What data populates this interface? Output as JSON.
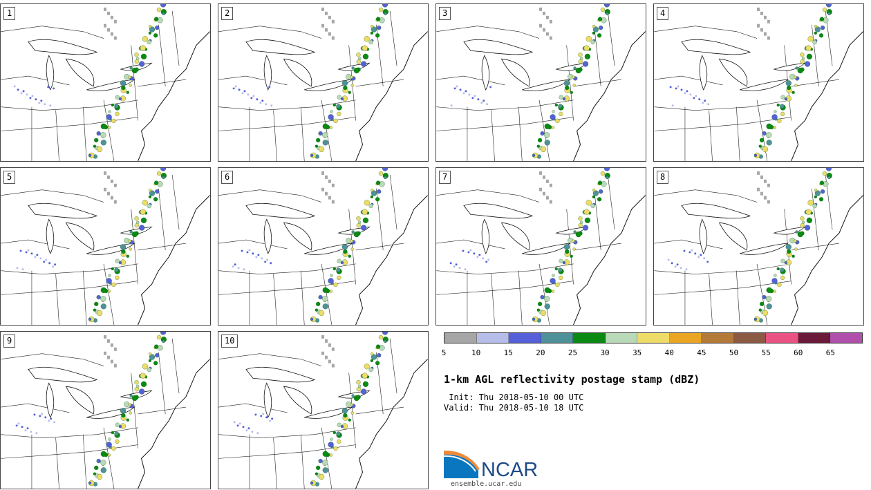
{
  "panels": [
    {
      "label": "1"
    },
    {
      "label": "2"
    },
    {
      "label": "3"
    },
    {
      "label": "4"
    },
    {
      "label": "5"
    },
    {
      "label": "6"
    },
    {
      "label": "7"
    },
    {
      "label": "8"
    },
    {
      "label": "9"
    },
    {
      "label": "10"
    }
  ],
  "colorbar": {
    "colors": [
      "#a6a6a6",
      "#b5bde8",
      "#5560d9",
      "#4f9199",
      "#0a8a12",
      "#bad9b8",
      "#eedc68",
      "#eaa622",
      "#b47a37",
      "#8b5a42",
      "#ea5284",
      "#6b1a3a",
      "#b050ab"
    ],
    "ticks": [
      "5",
      "10",
      "15",
      "20",
      "25",
      "30",
      "35",
      "40",
      "45",
      "50",
      "55",
      "60",
      "65"
    ]
  },
  "title": "1-km AGL reflectivity postage stamp (dBZ)",
  "init": " Init: Thu 2018-05-10 00 UTC",
  "valid": "Valid: Thu 2018-05-10 18 UTC",
  "logo": {
    "text": "NCAR",
    "url_text": "ensemble.ucar.edu",
    "color": "#1d4a86"
  }
}
